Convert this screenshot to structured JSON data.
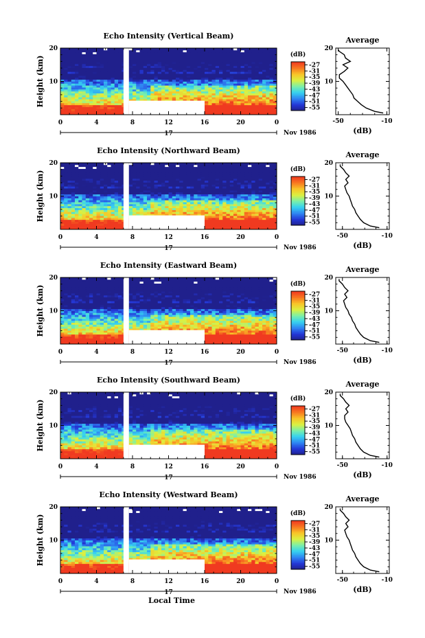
{
  "colorbar_label": "(dB)",
  "colorbar_ticks": [
    "-27",
    "-31",
    "-35",
    "-39",
    "-43",
    "-47",
    "-51",
    "-55"
  ],
  "average_title": "Average",
  "average_xlabel": "(dB)",
  "ylabel": "Height (km)",
  "date_label": "Nov 1986",
  "day_label": "17",
  "xlabel": "Local Time",
  "colors": {
    "scale": [
      "#20208c",
      "#2438d8",
      "#2f86f2",
      "#36d2f0",
      "#7cf0a8",
      "#dcf040",
      "#f8c428",
      "#f87820",
      "#f03a20"
    ]
  },
  "chart_data": [
    {
      "type": "heatmap",
      "title": "Echo Intensity (Vertical Beam)",
      "x_ticks": [
        "0",
        "4",
        "8",
        "12",
        "16",
        "20",
        "0"
      ],
      "xlim": [
        0,
        24
      ],
      "y_ticks": [
        "20",
        "10"
      ],
      "ylim": [
        0,
        20
      ],
      "color_scale_db": [
        -56,
        -27
      ],
      "data_gaps": [
        {
          "time_hours": [
            7.0,
            7.6
          ],
          "height_km": [
            0,
            20
          ]
        },
        {
          "time_hours": [
            7.6,
            16.0
          ],
          "height_km": [
            0,
            4.2
          ]
        }
      ],
      "average": {
        "x_ticks": [
          "-50",
          "-10"
        ],
        "xlim": [
          -52,
          -8
        ],
        "y_ticks": [
          "20",
          "10"
        ],
        "ylim": [
          0,
          20
        ],
        "profile_height_km": [
          0.5,
          1,
          2,
          3,
          4,
          5,
          6,
          7,
          8,
          9,
          10,
          11,
          12,
          13,
          14,
          15,
          16,
          17,
          18,
          19,
          19.5
        ],
        "profile_db": [
          -13,
          -20,
          -27,
          -31,
          -34,
          -37,
          -38,
          -40,
          -42,
          -44,
          -46,
          -49,
          -49,
          -45,
          -42,
          -46,
          -40,
          -44,
          -45,
          -49,
          -50
        ]
      }
    },
    {
      "type": "heatmap",
      "title": "Echo Intensity (Northward Beam)",
      "x_ticks": [
        "0",
        "4",
        "8",
        "12",
        "16",
        "20",
        "0"
      ],
      "xlim": [
        0,
        24
      ],
      "y_ticks": [
        "20",
        "10"
      ],
      "ylim": [
        0,
        20
      ],
      "color_scale_db": [
        -56,
        -27
      ],
      "data_gaps": [
        {
          "time_hours": [
            7.0,
            7.6
          ],
          "height_km": [
            0,
            20
          ]
        },
        {
          "time_hours": [
            7.6,
            16.0
          ],
          "height_km": [
            0,
            4.2
          ]
        }
      ],
      "average": {
        "x_ticks": [
          "-50",
          "-10"
        ],
        "xlim": [
          -56,
          -8
        ],
        "y_ticks": [
          "20",
          "10"
        ],
        "ylim": [
          0,
          20
        ],
        "profile_height_km": [
          0.5,
          1,
          2,
          3,
          4,
          5,
          6,
          7,
          8,
          9,
          10,
          11,
          12,
          13,
          14,
          15,
          16,
          17,
          18,
          19,
          19.5
        ],
        "profile_db": [
          -17,
          -25,
          -31,
          -34,
          -36,
          -38,
          -39,
          -41,
          -42,
          -43,
          -44,
          -46,
          -47,
          -48,
          -45,
          -47,
          -44,
          -47,
          -49,
          -52,
          -52
        ]
      }
    },
    {
      "type": "heatmap",
      "title": "Echo Intensity (Eastward Beam)",
      "x_ticks": [
        "0",
        "4",
        "8",
        "12",
        "16",
        "20",
        "0"
      ],
      "xlim": [
        0,
        24
      ],
      "y_ticks": [
        "20",
        "10"
      ],
      "ylim": [
        0,
        20
      ],
      "color_scale_db": [
        -56,
        -27
      ],
      "data_gaps": [
        {
          "time_hours": [
            7.0,
            7.6
          ],
          "height_km": [
            0,
            20
          ]
        },
        {
          "time_hours": [
            7.6,
            16.0
          ],
          "height_km": [
            0,
            4.2
          ]
        }
      ],
      "average": {
        "x_ticks": [
          "-50",
          "-10"
        ],
        "xlim": [
          -56,
          -8
        ],
        "y_ticks": [
          "20",
          "10"
        ],
        "ylim": [
          0,
          20
        ],
        "profile_height_km": [
          0.5,
          1,
          2,
          3,
          4,
          5,
          6,
          7,
          8,
          9,
          10,
          11,
          12,
          13,
          14,
          15,
          16,
          17,
          18,
          19,
          19.5
        ],
        "profile_db": [
          -17,
          -25,
          -31,
          -34,
          -36,
          -38,
          -39,
          -41,
          -42,
          -44,
          -45,
          -47,
          -48,
          -49,
          -46,
          -48,
          -45,
          -48,
          -50,
          -53,
          -53
        ]
      }
    },
    {
      "type": "heatmap",
      "title": "Echo Intensity (Southward Beam)",
      "x_ticks": [
        "0",
        "4",
        "8",
        "12",
        "16",
        "20",
        "0"
      ],
      "xlim": [
        0,
        24
      ],
      "y_ticks": [
        "20",
        "10"
      ],
      "ylim": [
        0,
        20
      ],
      "color_scale_db": [
        -56,
        -27
      ],
      "data_gaps": [
        {
          "time_hours": [
            7.0,
            7.6
          ],
          "height_km": [
            0,
            20
          ]
        },
        {
          "time_hours": [
            7.6,
            16.0
          ],
          "height_km": [
            0,
            4.2
          ]
        }
      ],
      "average": {
        "x_ticks": [
          "-50",
          "-10"
        ],
        "xlim": [
          -56,
          -8
        ],
        "y_ticks": [
          "20",
          "10"
        ],
        "ylim": [
          0,
          20
        ],
        "profile_height_km": [
          0.5,
          1,
          2,
          3,
          4,
          5,
          6,
          7,
          8,
          9,
          10,
          11,
          12,
          13,
          14,
          15,
          16,
          17,
          18,
          19,
          19.5
        ],
        "profile_db": [
          -17,
          -25,
          -31,
          -34,
          -36,
          -38,
          -39,
          -41,
          -42,
          -43,
          -45,
          -47,
          -48,
          -48,
          -45,
          -47,
          -44,
          -47,
          -49,
          -52,
          -52
        ]
      }
    },
    {
      "type": "heatmap",
      "title": "Echo Intensity (Westward Beam)",
      "x_ticks": [
        "0",
        "4",
        "8",
        "12",
        "16",
        "20",
        "0"
      ],
      "xlim": [
        0,
        24
      ],
      "y_ticks": [
        "20",
        "10"
      ],
      "ylim": [
        0,
        20
      ],
      "color_scale_db": [
        -56,
        -27
      ],
      "data_gaps": [
        {
          "time_hours": [
            7.0,
            7.6
          ],
          "height_km": [
            0,
            20
          ]
        },
        {
          "time_hours": [
            7.6,
            16.0
          ],
          "height_km": [
            0,
            4.2
          ]
        }
      ],
      "average": {
        "x_ticks": [
          "-50",
          "-10"
        ],
        "xlim": [
          -56,
          -8
        ],
        "y_ticks": [
          "20",
          "10"
        ],
        "ylim": [
          0,
          20
        ],
        "profile_height_km": [
          0.5,
          1,
          2,
          3,
          4,
          5,
          6,
          7,
          8,
          9,
          10,
          11,
          12,
          13,
          14,
          15,
          16,
          17,
          18,
          19,
          19.5
        ],
        "profile_db": [
          -17,
          -25,
          -31,
          -34,
          -36,
          -38,
          -39,
          -41,
          -42,
          -43,
          -44,
          -46,
          -47,
          -48,
          -45,
          -47,
          -44,
          -47,
          -49,
          -52,
          -52
        ]
      }
    }
  ]
}
